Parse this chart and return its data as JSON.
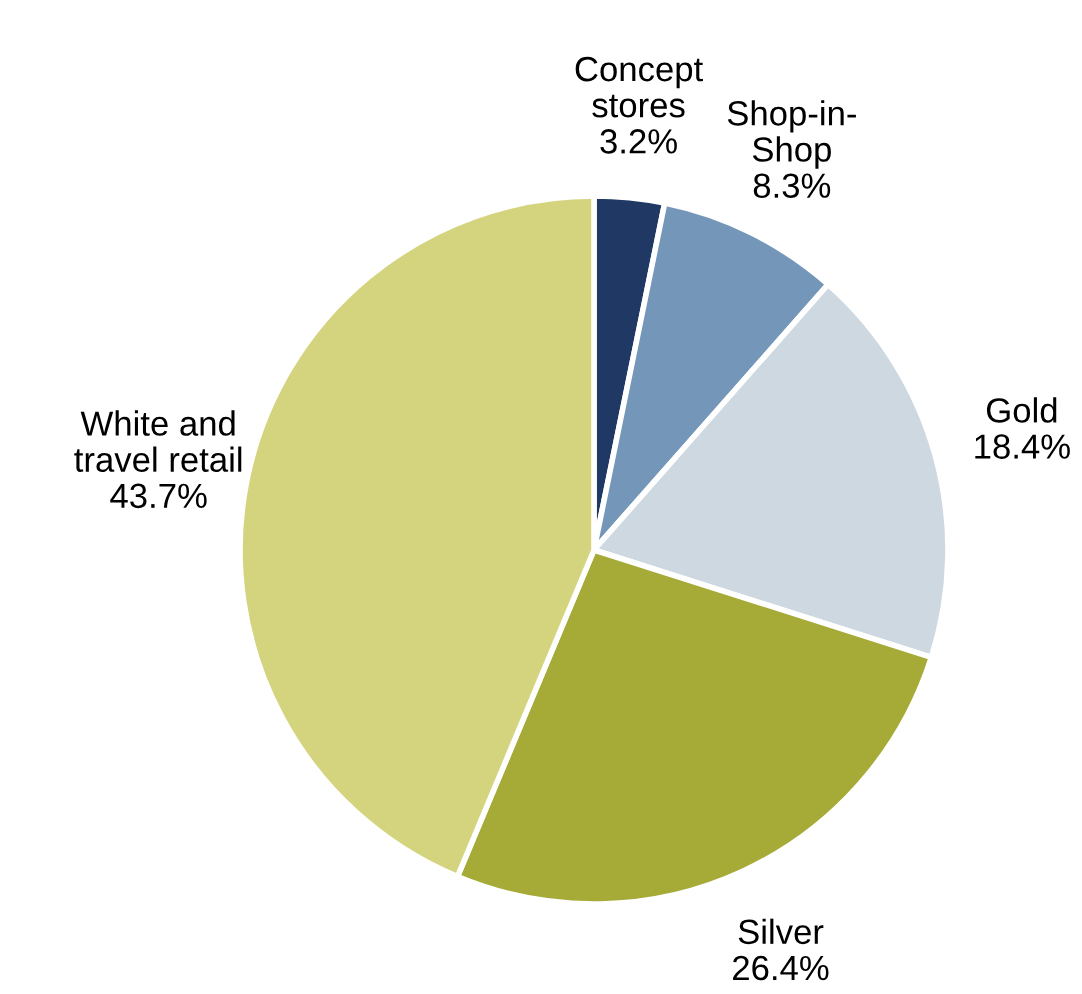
{
  "chart_data": {
    "type": "pie",
    "categories": [
      "Concept\nstores",
      "Shop-in-\nShop",
      "Gold",
      "Silver",
      "White and\ntravel retail"
    ],
    "values": [
      3.2,
      8.3,
      18.4,
      26.4,
      43.7
    ],
    "value_labels": [
      "3.2%",
      "8.3%",
      "18.4%",
      "26.4%",
      "43.7%"
    ],
    "colors": [
      "#1f3864",
      "#7396b9",
      "#cdd8e0",
      "#a6ab38",
      "#d4d47f"
    ],
    "legend": false
  }
}
